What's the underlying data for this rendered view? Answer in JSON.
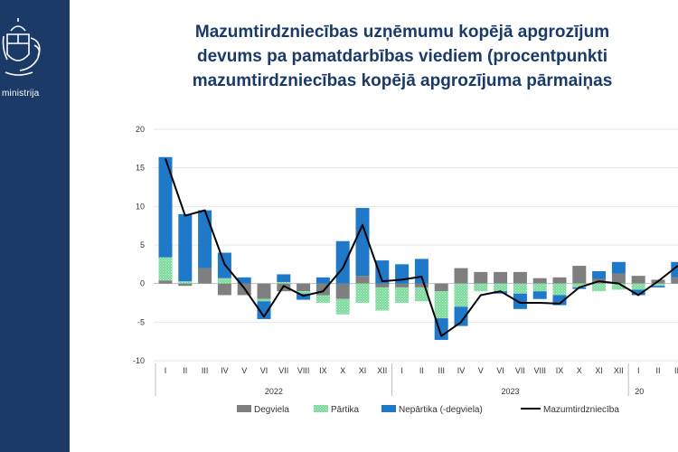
{
  "sidebar": {
    "ministry_text": "ministrija",
    "crest_icon": "latvia-coat-of-arms-icon",
    "background_color": "#1b3a68"
  },
  "title_lines": [
    "Mazumtirdzniecības uzņēmumu kopējā apgrozījum",
    "devums pa pamatdarbības viediem (procentpunkti",
    "mazumtirdzniecības kopējā apgrozījuma pārmaiņas"
  ],
  "chart_data": {
    "type": "bar",
    "stacked": true,
    "ylim": [
      -10,
      20
    ],
    "yticks": [
      -10,
      -5,
      0,
      5,
      10,
      15,
      20
    ],
    "grid": true,
    "legend_position": "bottom",
    "categories": [
      "I",
      "II",
      "III",
      "IV",
      "V",
      "VI",
      "VII",
      "VIII",
      "IX",
      "X",
      "XI",
      "XII",
      "I",
      "II",
      "III",
      "IV",
      "V",
      "VI",
      "VII",
      "VIII",
      "IX",
      "X",
      "XI",
      "XII",
      "I",
      "II",
      "III"
    ],
    "years": [
      {
        "label": "2022",
        "start": 0,
        "end": 11
      },
      {
        "label": "2023",
        "start": 12,
        "end": 23
      },
      {
        "label": "20",
        "start": 24,
        "end": 26
      }
    ],
    "series": [
      {
        "name": "Degviela",
        "type": "bar",
        "color": "#7f7f7f",
        "values": [
          0.4,
          -0.3,
          2.0,
          -1.5,
          -1.5,
          -2.0,
          -1.0,
          -1.0,
          -1.5,
          -2.0,
          1.0,
          -0.5,
          -0.5,
          -0.5,
          -1.0,
          2.0,
          1.5,
          1.5,
          1.5,
          0.7,
          0.8,
          2.3,
          0.6,
          1.3,
          1.0,
          0.5,
          0.8
        ]
      },
      {
        "name": "Pārtika",
        "type": "bar",
        "color": "#7ad99a",
        "values": [
          3.0,
          0.3,
          0.0,
          0.7,
          0.0,
          -0.3,
          0.2,
          -0.3,
          -1.0,
          -2.0,
          -2.5,
          -3.0,
          -2.0,
          -1.8,
          -3.5,
          -3.0,
          -1.0,
          -1.0,
          -1.3,
          -1.0,
          -1.5,
          -0.5,
          -1.0,
          -0.8,
          -0.8,
          -0.3,
          0.0
        ]
      },
      {
        "name": "Nepārtika (-degviela)",
        "type": "bar",
        "color": "#1f78c8",
        "values": [
          13.0,
          8.7,
          7.5,
          3.3,
          0.8,
          -2.3,
          1.0,
          -0.8,
          0.8,
          5.5,
          8.8,
          3.0,
          2.5,
          3.2,
          -2.8,
          -2.5,
          0.0,
          -0.3,
          -2.0,
          -1.0,
          -1.3,
          -0.2,
          1.0,
          1.5,
          -0.7,
          -0.2,
          2.0
        ]
      },
      {
        "name": "Mazumtirdzniecība",
        "type": "line",
        "color": "#000000",
        "values": [
          16.2,
          8.8,
          9.5,
          2.5,
          -0.6,
          -4.3,
          -0.3,
          -1.6,
          -1.0,
          2.0,
          7.6,
          0.3,
          0.5,
          0.9,
          -6.8,
          -5.0,
          -1.5,
          -1.0,
          -2.5,
          -2.5,
          -2.6,
          -0.5,
          0.3,
          0.0,
          -1.5,
          0.3,
          2.3
        ]
      }
    ]
  }
}
